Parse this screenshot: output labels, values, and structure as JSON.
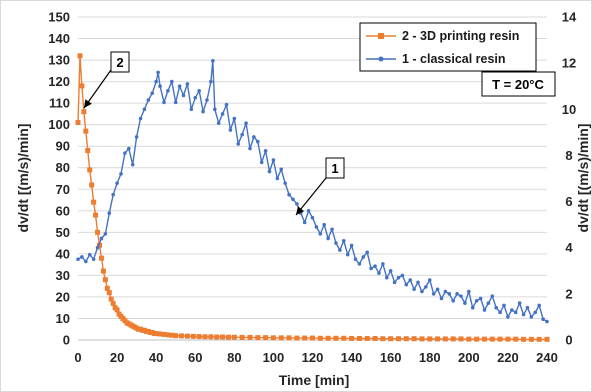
{
  "chart_data": {
    "type": "line",
    "xlabel": "Time [min]",
    "ylabel_left": "dv/dt [(m/s)/min]",
    "ylabel_right": "dv/dt [(m/s)/min]",
    "xlim": [
      0,
      240
    ],
    "ylim_left": [
      0,
      150
    ],
    "ylim_right": [
      0,
      14
    ],
    "x_ticks": [
      "0",
      "20",
      "40",
      "60",
      "80",
      "100",
      "120",
      "140",
      "160",
      "180",
      "200",
      "220",
      "240"
    ],
    "y_left_ticks": [
      "0",
      "10",
      "20",
      "30",
      "40",
      "50",
      "60",
      "70",
      "80",
      "90",
      "100",
      "110",
      "120",
      "130",
      "140",
      "150"
    ],
    "y_right_ticks": [
      "0",
      "2",
      "4",
      "6",
      "8",
      "10",
      "12",
      "14"
    ],
    "grid": true,
    "legend_position": "top-right",
    "annotation_box": "T = 20°C",
    "callouts": [
      {
        "label": "1",
        "series": "1 - classical resin",
        "x": 111,
        "y": 55
      },
      {
        "label": "2",
        "series": "2 - 3D printing resin",
        "x": 3,
        "y": 106
      }
    ],
    "series": [
      {
        "name": "2 - 3D printing resin",
        "axis": "left",
        "color": "#ED7D31",
        "marker": "square",
        "x": [
          0,
          1,
          2,
          3,
          4,
          5,
          6,
          7,
          8,
          9,
          10,
          11,
          12,
          13,
          14,
          15,
          16,
          17,
          18,
          19,
          20,
          21,
          22,
          23,
          24,
          25,
          26,
          27,
          28,
          29,
          30,
          31,
          32,
          33,
          34,
          35,
          36,
          37,
          38,
          39,
          40,
          42,
          44,
          46,
          48,
          50,
          53,
          56,
          59,
          62,
          65,
          68,
          71,
          74,
          77,
          80,
          84,
          88,
          92,
          96,
          100,
          104,
          108,
          112,
          116,
          120,
          124,
          128,
          132,
          136,
          140,
          144,
          148,
          152,
          156,
          160,
          164,
          168,
          172,
          176,
          180,
          184,
          188,
          192,
          196,
          200,
          204,
          208,
          212,
          216,
          220,
          224,
          228,
          232,
          236,
          240
        ],
        "y": [
          101,
          132,
          118,
          106,
          97,
          88,
          79,
          72,
          64,
          58,
          50,
          44,
          38,
          32,
          28,
          24,
          22,
          19,
          17,
          15,
          14,
          12,
          11,
          10,
          9,
          8,
          7.5,
          7,
          6.5,
          6,
          5.5,
          5,
          5,
          4.5,
          4.5,
          4,
          4,
          3.5,
          3.5,
          3,
          3,
          2.8,
          2.6,
          2.4,
          2.2,
          2,
          1.9,
          1.8,
          1.7,
          1.6,
          1.5,
          1.5,
          1.4,
          1.4,
          1.3,
          1.3,
          1.2,
          1.2,
          1.1,
          1.1,
          1.0,
          1.0,
          1.0,
          0.9,
          0.9,
          0.9,
          0.8,
          0.8,
          0.8,
          0.8,
          0.7,
          0.7,
          0.7,
          0.7,
          0.6,
          0.6,
          0.6,
          0.6,
          0.6,
          0.5,
          0.5,
          0.5,
          0.5,
          0.5,
          0.5,
          0.4,
          0.4,
          0.4,
          0.4,
          0.4,
          0.4,
          0.4,
          0.3,
          0.3,
          0.3,
          0.3
        ]
      },
      {
        "name": "1 - classical resin",
        "axis": "right",
        "color": "#4472C4",
        "marker": "dot",
        "x": [
          0,
          2,
          4,
          6,
          8,
          10,
          12,
          14,
          16,
          18,
          20,
          22,
          24,
          26,
          28,
          30,
          32,
          34,
          36,
          38,
          40,
          41,
          42,
          44,
          46,
          48,
          50,
          52,
          54,
          56,
          58,
          60,
          62,
          64,
          66,
          68,
          69,
          70,
          72,
          74,
          76,
          78,
          80,
          82,
          84,
          86,
          88,
          90,
          92,
          94,
          96,
          98,
          100,
          102,
          104,
          106,
          108,
          110,
          112,
          114,
          116,
          118,
          120,
          122,
          124,
          126,
          128,
          130,
          132,
          134,
          136,
          138,
          140,
          142,
          144,
          146,
          148,
          150,
          152,
          154,
          156,
          158,
          160,
          162,
          164,
          166,
          168,
          170,
          172,
          174,
          176,
          178,
          180,
          182,
          184,
          186,
          188,
          190,
          192,
          194,
          196,
          198,
          200,
          202,
          204,
          206,
          208,
          210,
          212,
          214,
          216,
          218,
          220,
          222,
          224,
          226,
          228,
          230,
          232,
          234,
          236,
          238,
          240
        ],
        "y": [
          3.5,
          3.6,
          3.4,
          3.7,
          3.5,
          4.0,
          4.4,
          4.6,
          5.5,
          6.3,
          6.8,
          7.2,
          8.1,
          8.3,
          7.6,
          8.8,
          9.6,
          10.0,
          10.4,
          10.7,
          11.2,
          11.6,
          11.0,
          10.3,
          10.8,
          11.2,
          10.3,
          11.0,
          10.6,
          11.1,
          10.0,
          10.5,
          10.8,
          9.9,
          10.4,
          11.2,
          12.1,
          10.0,
          9.4,
          9.8,
          10.2,
          9.1,
          9.6,
          8.5,
          8.9,
          9.4,
          8.3,
          8.8,
          8.6,
          7.7,
          8.2,
          7.3,
          7.8,
          7.0,
          7.4,
          6.8,
          6.3,
          6.1,
          5.9,
          5.5,
          5.1,
          5.6,
          5.3,
          4.9,
          4.6,
          5.0,
          4.4,
          4.8,
          4.2,
          3.9,
          4.3,
          3.7,
          4.1,
          3.5,
          3.3,
          3.6,
          3.8,
          3.1,
          3.2,
          2.9,
          3.3,
          2.7,
          3.0,
          2.5,
          2.7,
          2.8,
          2.4,
          2.6,
          2.2,
          2.5,
          2.1,
          2.3,
          2.6,
          2.0,
          2.2,
          1.8,
          2.1,
          2.0,
          1.7,
          2.0,
          1.9,
          1.6,
          2.1,
          1.4,
          1.7,
          1.8,
          1.3,
          1.6,
          1.9,
          1.4,
          1.2,
          1.5,
          1.0,
          1.3,
          1.2,
          1.6,
          1.1,
          1.4,
          1.0,
          1.2,
          1.5,
          0.9,
          0.8
        ]
      }
    ]
  }
}
